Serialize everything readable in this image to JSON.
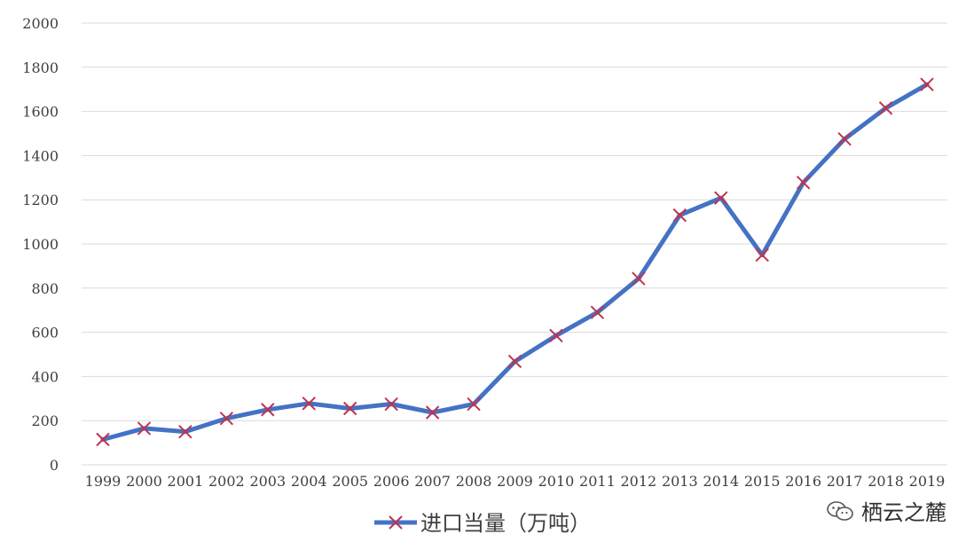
{
  "chart_data": {
    "type": "line",
    "title": "",
    "xlabel": "",
    "ylabel": "",
    "categories": [
      "1999",
      "2000",
      "2001",
      "2002",
      "2003",
      "2004",
      "2005",
      "2006",
      "2007",
      "2008",
      "2009",
      "2010",
      "2011",
      "2012",
      "2013",
      "2014",
      "2015",
      "2016",
      "2017",
      "2018",
      "2019"
    ],
    "series": [
      {
        "name": "进口当量（万吨）",
        "values": [
          115,
          165,
          150,
          210,
          250,
          278,
          255,
          275,
          237,
          275,
          468,
          585,
          690,
          843,
          1130,
          1208,
          950,
          1278,
          1475,
          1615,
          1722
        ],
        "color": "#4472c4",
        "marker": "x",
        "marker_color": "#c0334d"
      }
    ],
    "yticks": [
      "0",
      "200",
      "400",
      "600",
      "800",
      "1000",
      "1200",
      "1400",
      "1600",
      "1800",
      "2000"
    ],
    "ylim": [
      0,
      2000
    ],
    "grid": true,
    "legend": "bottom"
  },
  "watermark": {
    "text": "栖云之麓",
    "icon": "wechat-icon"
  }
}
